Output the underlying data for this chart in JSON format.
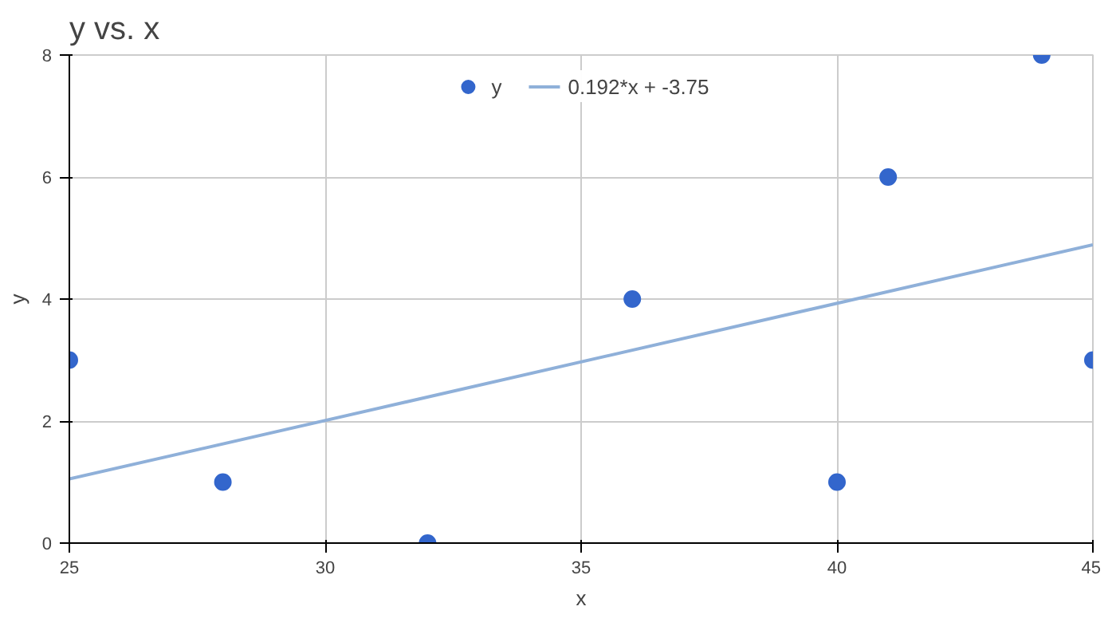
{
  "chart_data": {
    "type": "scatter",
    "title": "y vs. x",
    "xlabel": "x",
    "ylabel": "y",
    "xlim": [
      25,
      45
    ],
    "ylim": [
      0,
      8
    ],
    "xticks": [
      25,
      30,
      35,
      40,
      45
    ],
    "yticks": [
      0,
      2,
      4,
      6,
      8
    ],
    "grid": true,
    "legend": "top",
    "series": [
      {
        "name": "y",
        "color": "#3366cc",
        "marker": "circle",
        "x": [
          25,
          28,
          32,
          36,
          40,
          41,
          44,
          45
        ],
        "values": [
          3,
          1,
          0,
          4,
          1,
          6,
          8,
          3
        ]
      },
      {
        "name": "0.192*x + -3.75",
        "type": "line",
        "color": "#8fb0d9",
        "x": [
          25,
          45
        ],
        "values": [
          1.05,
          4.89
        ]
      }
    ]
  }
}
